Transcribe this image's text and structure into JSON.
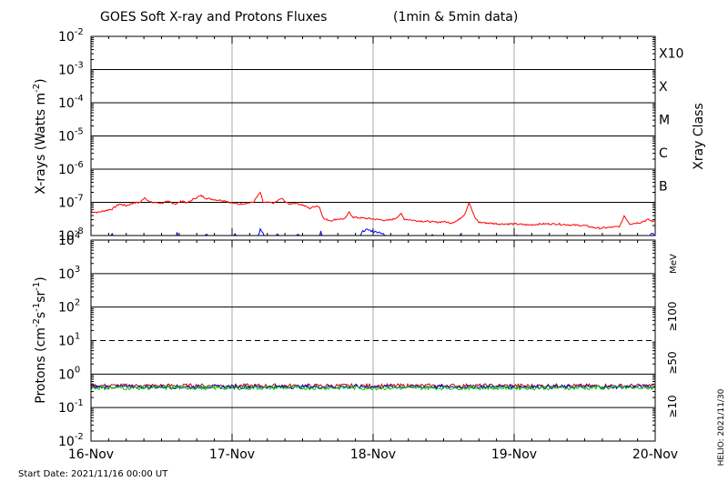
{
  "chart_data": {
    "type": "line",
    "title": "GOES Soft X-ray and Protons Fluxes",
    "title_suffix": "(1min & 5min data)",
    "x_ticks": [
      "16-Nov",
      "17-Nov",
      "18-Nov",
      "19-Nov",
      "20-Nov"
    ],
    "x_range_days": [
      0,
      4
    ],
    "start_date": "Start Date: 2021/11/16 00:00 UT",
    "footer_right": "HELIO: 2021/11/30",
    "grid": true,
    "xray": {
      "ylabel_prefix": "X-rays (Watts m",
      "ylabel_exp": "-2",
      "ylabel_suffix": ")",
      "y_scale": "log",
      "ylim_exp": [
        -8,
        -2
      ],
      "y_ticks": [
        {
          "base": "10",
          "exp": "-2"
        },
        {
          "base": "10",
          "exp": "-3"
        },
        {
          "base": "10",
          "exp": "-4"
        },
        {
          "base": "10",
          "exp": "-5"
        },
        {
          "base": "10",
          "exp": "-6"
        },
        {
          "base": "10",
          "exp": "-7"
        },
        {
          "base": "10",
          "exp": "-8"
        }
      ],
      "class_title": "Xray Class",
      "classes": [
        {
          "label": "X10",
          "exp": -3
        },
        {
          "label": "X",
          "exp": -4
        },
        {
          "label": "M",
          "exp": -5
        },
        {
          "label": "C",
          "exp": -6
        },
        {
          "label": "B",
          "exp": -7
        }
      ],
      "series": [
        {
          "color": "#ff0000",
          "points": [
            [
              0.0,
              -7.28
            ],
            [
              0.05,
              -7.3
            ],
            [
              0.1,
              -7.25
            ],
            [
              0.15,
              -7.2
            ],
            [
              0.2,
              -7.05
            ],
            [
              0.25,
              -7.1
            ],
            [
              0.3,
              -7.02
            ],
            [
              0.35,
              -7.0
            ],
            [
              0.38,
              -6.85
            ],
            [
              0.42,
              -7.0
            ],
            [
              0.5,
              -7.02
            ],
            [
              0.55,
              -6.98
            ],
            [
              0.6,
              -7.05
            ],
            [
              0.65,
              -6.95
            ],
            [
              0.68,
              -7.02
            ],
            [
              0.72,
              -6.92
            ],
            [
              0.75,
              -6.85
            ],
            [
              0.78,
              -6.8
            ],
            [
              0.82,
              -6.88
            ],
            [
              0.88,
              -6.92
            ],
            [
              0.95,
              -6.95
            ],
            [
              1.0,
              -7.02
            ],
            [
              1.05,
              -7.05
            ],
            [
              1.15,
              -7.0
            ],
            [
              1.2,
              -6.7
            ],
            [
              1.22,
              -7.0
            ],
            [
              1.3,
              -7.02
            ],
            [
              1.35,
              -6.88
            ],
            [
              1.4,
              -7.05
            ],
            [
              1.45,
              -7.02
            ],
            [
              1.5,
              -7.08
            ],
            [
              1.55,
              -7.18
            ],
            [
              1.6,
              -7.1
            ],
            [
              1.62,
              -7.15
            ],
            [
              1.65,
              -7.5
            ],
            [
              1.7,
              -7.55
            ],
            [
              1.75,
              -7.5
            ],
            [
              1.8,
              -7.5
            ],
            [
              1.83,
              -7.3
            ],
            [
              1.86,
              -7.45
            ],
            [
              2.0,
              -7.5
            ],
            [
              2.1,
              -7.55
            ],
            [
              2.15,
              -7.5
            ],
            [
              2.2,
              -7.35
            ],
            [
              2.22,
              -7.5
            ],
            [
              2.3,
              -7.55
            ],
            [
              2.4,
              -7.58
            ],
            [
              2.45,
              -7.6
            ],
            [
              2.5,
              -7.58
            ],
            [
              2.55,
              -7.62
            ],
            [
              2.6,
              -7.55
            ],
            [
              2.65,
              -7.35
            ],
            [
              2.68,
              -7.0
            ],
            [
              2.72,
              -7.45
            ],
            [
              2.75,
              -7.6
            ],
            [
              2.8,
              -7.62
            ],
            [
              2.9,
              -7.65
            ],
            [
              3.0,
              -7.65
            ],
            [
              3.1,
              -7.68
            ],
            [
              3.2,
              -7.65
            ],
            [
              3.3,
              -7.65
            ],
            [
              3.4,
              -7.68
            ],
            [
              3.5,
              -7.7
            ],
            [
              3.55,
              -7.75
            ],
            [
              3.6,
              -7.78
            ],
            [
              3.7,
              -7.75
            ],
            [
              3.75,
              -7.72
            ],
            [
              3.78,
              -7.4
            ],
            [
              3.82,
              -7.65
            ],
            [
              3.9,
              -7.6
            ],
            [
              3.95,
              -7.52
            ],
            [
              4.0,
              -7.6
            ]
          ]
        },
        {
          "color": "#0000ff",
          "points": [
            [
              0.0,
              -8.1
            ],
            [
              0.1,
              -8.1
            ],
            [
              0.15,
              -7.95
            ],
            [
              0.17,
              -8.1
            ],
            [
              0.6,
              -8.1
            ],
            [
              0.61,
              -7.92
            ],
            [
              0.62,
              -8.1
            ],
            [
              0.8,
              -8.1
            ],
            [
              0.82,
              -7.95
            ],
            [
              0.84,
              -8.1
            ],
            [
              1.0,
              -8.1
            ],
            [
              1.02,
              -7.96
            ],
            [
              1.04,
              -8.1
            ],
            [
              1.18,
              -8.1
            ],
            [
              1.2,
              -7.82
            ],
            [
              1.22,
              -7.95
            ],
            [
              1.24,
              -8.1
            ],
            [
              1.3,
              -8.1
            ],
            [
              1.32,
              -7.96
            ],
            [
              1.34,
              -8.1
            ],
            [
              1.45,
              -8.1
            ],
            [
              1.47,
              -7.95
            ],
            [
              1.49,
              -8.1
            ],
            [
              1.62,
              -8.1
            ],
            [
              1.63,
              -7.85
            ],
            [
              1.64,
              -8.1
            ],
            [
              1.9,
              -8.1
            ],
            [
              1.92,
              -7.88
            ],
            [
              1.96,
              -7.82
            ],
            [
              2.0,
              -7.88
            ],
            [
              2.05,
              -7.9
            ],
            [
              2.12,
              -8.1
            ],
            [
              2.4,
              -8.1
            ],
            [
              2.42,
              -7.95
            ],
            [
              2.44,
              -8.1
            ],
            [
              2.6,
              -8.1
            ],
            [
              2.62,
              -7.96
            ],
            [
              2.64,
              -8.1
            ],
            [
              3.0,
              -8.1
            ],
            [
              3.02,
              -7.96
            ],
            [
              3.04,
              -8.1
            ],
            [
              3.95,
              -8.1
            ],
            [
              3.97,
              -7.94
            ],
            [
              4.0,
              -7.98
            ]
          ]
        }
      ]
    },
    "protons": {
      "ylabel_prefix": "Protons (cm",
      "ylabel_exp1": "-2",
      "ylabel_mid1": "s",
      "ylabel_exp2": "-1",
      "ylabel_mid2": "sr",
      "ylabel_exp3": "-1",
      "ylabel_suffix": ")",
      "y_scale": "log",
      "ylim_exp": [
        -2,
        4
      ],
      "y_ticks": [
        {
          "base": "10",
          "exp": "4"
        },
        {
          "base": "10",
          "exp": "3"
        },
        {
          "base": "10",
          "exp": "2"
        },
        {
          "base": "10",
          "exp": "1"
        },
        {
          "base": "10",
          "exp": "0"
        },
        {
          "base": "10",
          "exp": "-1"
        },
        {
          "base": "10",
          "exp": "-2"
        }
      ],
      "threshold_exp": 1,
      "unit": "MeV",
      "legend": [
        {
          "label": "≥100",
          "color": "#00cc00"
        },
        {
          "label": "≥50",
          "color": "#0000cc"
        },
        {
          "label": "≥10",
          "color": "#cc0000"
        }
      ],
      "series": [
        {
          "color": "#cc0000",
          "level_exp": -0.35
        },
        {
          "color": "#0000cc",
          "level_exp": -0.38
        },
        {
          "color": "#00cc00",
          "level_exp": -0.41
        }
      ]
    }
  }
}
